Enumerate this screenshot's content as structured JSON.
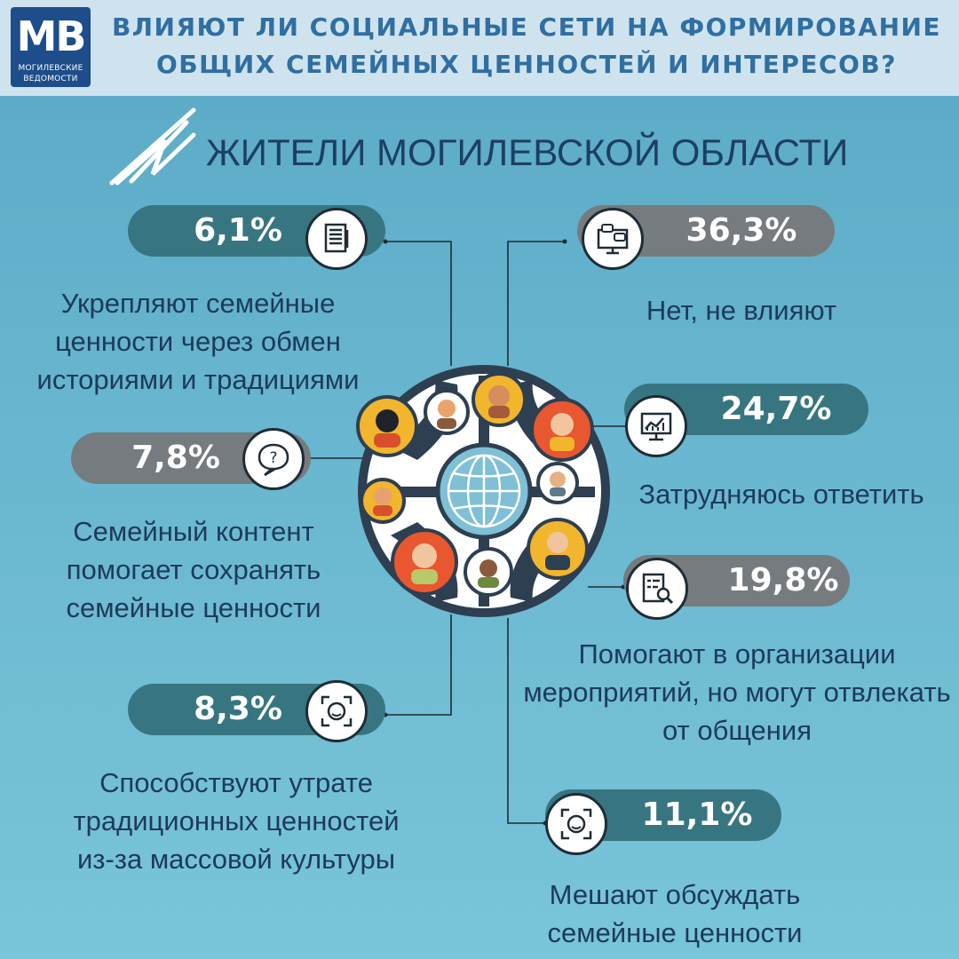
{
  "header": {
    "logo_mark": "МВ",
    "logo_line1": "МОГИЛЕВСКИЕ",
    "logo_line2": "ВЕДОМОСТИ",
    "title": "ВЛИЯЮТ ЛИ СОЦИАЛЬНЫЕ СЕТИ НА ФОРМИРОВАНИЕ ОБЩИХ СЕМЕЙНЫХ ЦЕННОСТЕЙ И ИНТЕРЕСОВ?"
  },
  "subtitle": "ЖИТЕЛИ МОГИЛЕВСКОЙ ОБЛАСТИ",
  "colors": {
    "background": "#68b6cf",
    "banner": "#cfe3ef",
    "teal_pill": "#377681",
    "grey_pill": "#757b7e",
    "title_text": "#2f6fa2",
    "label_text": "#1d3a5a"
  },
  "chart_data": {
    "type": "bar",
    "unit": "%",
    "categories": [
      "Укрепляют семейные ценности через обмен историями и традициями",
      "Семейный контент помогает сохранять семейные ценности",
      "Способствуют утрате традиционных ценностей из-за массовой культуры",
      "Нет, не влияют",
      "Затрудняюсь ответить",
      "Помогают в организации мероприятий, но могут отвлекать от общения",
      "Мешают обсуждать семейные ценности"
    ],
    "values": [
      6.1,
      7.8,
      8.3,
      36.3,
      24.7,
      19.8,
      11.1
    ]
  },
  "items": [
    {
      "value": "6,1%",
      "label": "Укрепляют семейные\nценности через обмен\nисториями и традициями",
      "icon": "document-list-icon"
    },
    {
      "value": "7,8%",
      "label": "Семейный контент\nпомогает сохранять\nсемейные ценности",
      "icon": "question-bubble-icon"
    },
    {
      "value": "8,3%",
      "label": "Способствуют утрате\nтрадиционных ценностей\nиз-за массовой культуры",
      "icon": "face-frame-icon"
    },
    {
      "value": "36,3%",
      "label": "Нет, не влияют",
      "icon": "chat-monitor-icon"
    },
    {
      "value": "24,7%",
      "label": "Затрудняюсь ответить",
      "icon": "chart-monitor-icon"
    },
    {
      "value": "19,8%",
      "label": "Помогают в организации\nмероприятий, но могут отвлекать\nот общения",
      "icon": "checklist-search-icon"
    },
    {
      "value": "11,1%",
      "label": "Мешают обсуждать\nсемейные ценности",
      "icon": "face-frame-icon"
    }
  ]
}
